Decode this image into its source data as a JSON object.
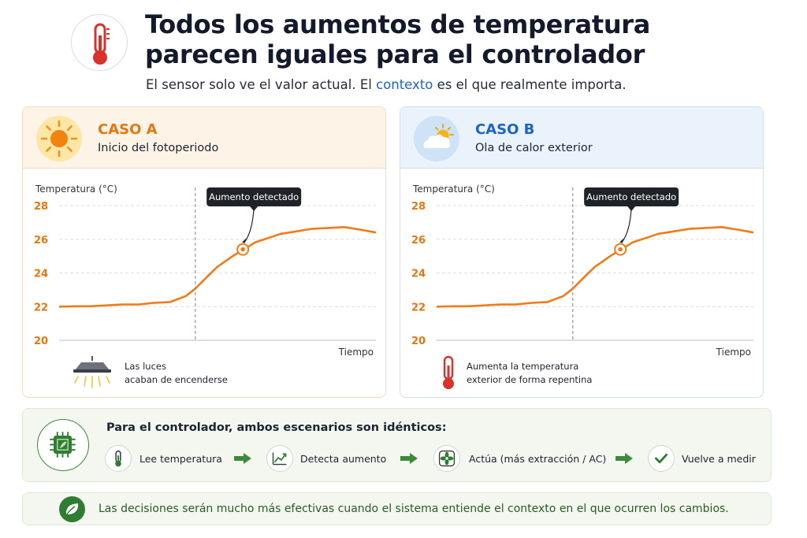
{
  "header": {
    "icon": "thermometer-icon",
    "title_line1": "Todos los aumentos de temperatura",
    "title_line2": "parecen iguales para el controlador",
    "subtitle_before": "El sensor solo ve el valor actual. El ",
    "subtitle_keyword": "contexto",
    "subtitle_after": " es el que realmente importa."
  },
  "colors": {
    "accent_orange": "#e8760f",
    "accent_blue": "#1d63c4",
    "accent_green": "#2f7d32"
  },
  "case_a": {
    "icon": "sun-icon",
    "label": "CASO A",
    "description": "Inicio del fotoperiodo",
    "footer_icon": "grow-lamp-icon",
    "footer_line1": "Las luces",
    "footer_line2": "acaban de encenderse"
  },
  "case_b": {
    "icon": "sun-cloud-icon",
    "label": "CASO B",
    "description": "Ola de calor exterior",
    "footer_icon": "thermometer-icon",
    "footer_line1": "Aumenta la temperatura",
    "footer_line2": "exterior de forma repentina"
  },
  "chart_data": [
    {
      "type": "line",
      "ylabel": "Temperatura (°C)",
      "xlabel": "Tiempo",
      "ylim": [
        20,
        28
      ],
      "yticks": [
        20,
        22,
        24,
        26,
        28
      ],
      "grid": true,
      "annotation": "Aumento detectado",
      "event_x": 0.43,
      "detected_point": {
        "x": 0.58,
        "y": 25.4
      },
      "series": [
        {
          "color": "#f07b18",
          "x": [
            0,
            0.05,
            0.1,
            0.15,
            0.2,
            0.25,
            0.3,
            0.35,
            0.4,
            0.43,
            0.47,
            0.5,
            0.55,
            0.58,
            0.62,
            0.66,
            0.7,
            0.75,
            0.8,
            0.85,
            0.9,
            0.95,
            1.0
          ],
          "values": [
            22.0,
            22.05,
            22.0,
            22.1,
            22.1,
            22.15,
            22.2,
            22.3,
            22.6,
            23.1,
            23.8,
            24.4,
            25.0,
            25.4,
            25.8,
            26.1,
            26.3,
            26.5,
            26.6,
            26.7,
            26.7,
            26.6,
            26.4
          ]
        }
      ]
    },
    {
      "type": "line",
      "ylabel": "Temperatura (°C)",
      "xlabel": "Tiempo",
      "ylim": [
        20,
        28
      ],
      "yticks": [
        20,
        22,
        24,
        26,
        28
      ],
      "grid": true,
      "annotation": "Aumento detectado",
      "event_x": 0.43,
      "detected_point": {
        "x": 0.58,
        "y": 25.4
      },
      "series": [
        {
          "color": "#f07b18",
          "x": [
            0,
            0.05,
            0.1,
            0.15,
            0.2,
            0.25,
            0.3,
            0.35,
            0.4,
            0.43,
            0.47,
            0.5,
            0.55,
            0.58,
            0.62,
            0.66,
            0.7,
            0.75,
            0.8,
            0.85,
            0.9,
            0.95,
            1.0
          ],
          "values": [
            22.0,
            22.05,
            22.0,
            22.1,
            22.1,
            22.15,
            22.2,
            22.3,
            22.6,
            23.1,
            23.8,
            24.4,
            25.0,
            25.4,
            25.8,
            26.1,
            26.3,
            26.5,
            26.6,
            26.7,
            26.7,
            26.6,
            26.4
          ]
        }
      ]
    }
  ],
  "flow": {
    "icon": "chip-icon",
    "title": "Para el controlador,  ambos escenarios son idénticos:",
    "steps": [
      {
        "icon": "thermometer-icon",
        "label": "Lee temperatura"
      },
      {
        "icon": "trend-up-icon",
        "label": "Detecta aumento"
      },
      {
        "icon": "fan-icon",
        "label": "Actúa (más extracción / AC)"
      },
      {
        "icon": "check-icon",
        "label": "Vuelve a medir"
      }
    ]
  },
  "conclusion": {
    "icon": "leaf-icon",
    "text": "Las decisiones serán mucho más efectivas cuando el sistema entiende el contexto en el que ocurren los cambios."
  }
}
